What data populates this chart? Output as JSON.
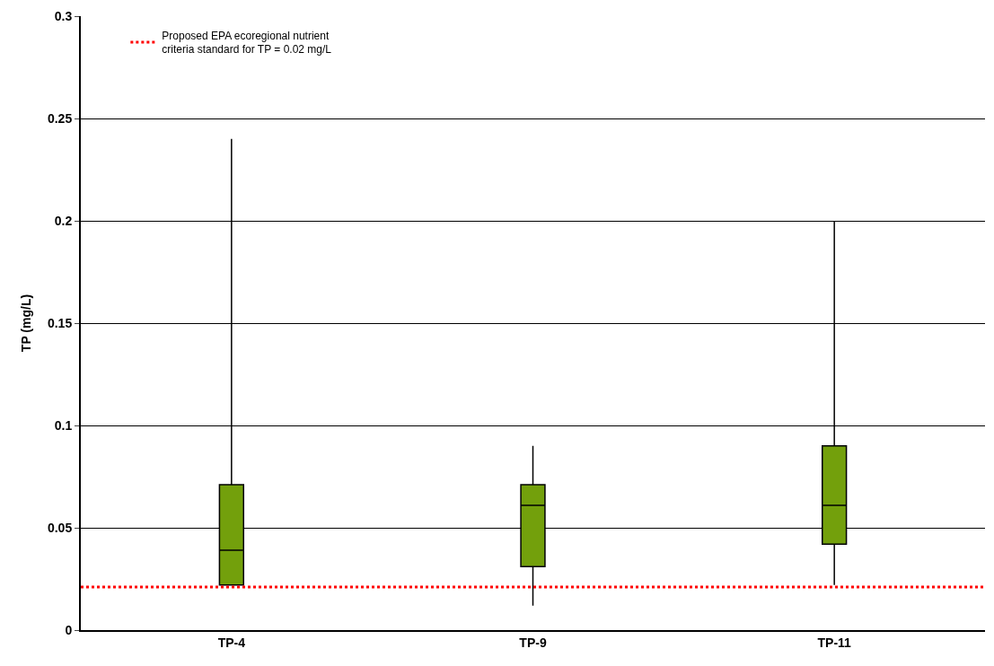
{
  "chart_data": {
    "type": "box",
    "ylabel": "TP (mg/L)",
    "categories": [
      "TP-4",
      "TP-9",
      "TP-11"
    ],
    "boxes": [
      {
        "low": 0.022,
        "q1": 0.022,
        "median": 0.039,
        "q3": 0.071,
        "high": 0.24
      },
      {
        "low": 0.012,
        "q1": 0.031,
        "median": 0.061,
        "q3": 0.071,
        "high": 0.09
      },
      {
        "low": 0.022,
        "q1": 0.042,
        "median": 0.061,
        "q3": 0.09,
        "high": 0.2
      }
    ],
    "color": "#73a00c",
    "ylim": [
      0,
      0.3
    ],
    "yticks": [
      0,
      0.05,
      0.1,
      0.15,
      0.2,
      0.25,
      0.3
    ],
    "ref_lines": [
      {
        "axis": "y",
        "value": 0.021,
        "label": "Proposed EPA ecoregional nutrient\ncriteria standard for TP = 0.02 mg/L",
        "color": "#ff0000",
        "line_style": "dotted"
      }
    ],
    "grid": "y",
    "legend": "top left"
  }
}
